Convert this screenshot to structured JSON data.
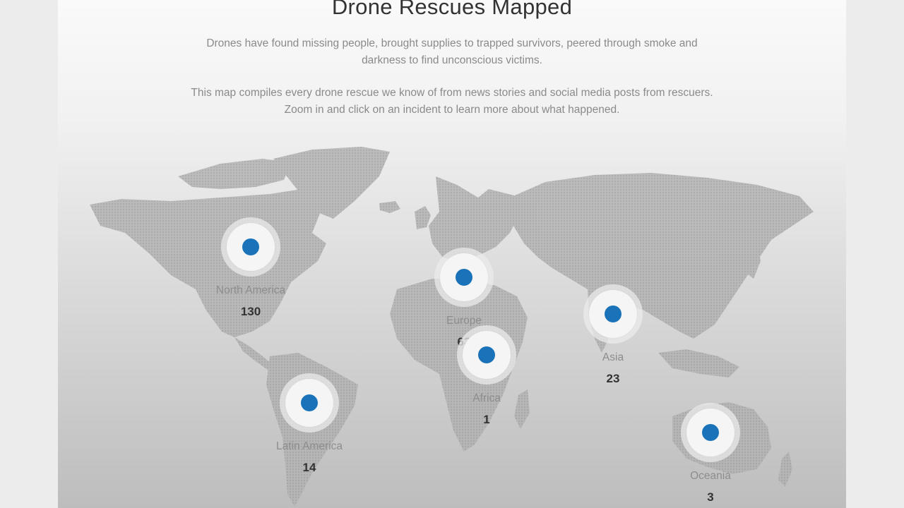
{
  "header": {
    "title": "Drone Rescues Mapped",
    "paragraph_1": "Drones have found missing people, brought supplies to trapped survivors, peered through smoke and darkness to find unconscious victims.",
    "paragraph_2": "This map compiles every drone rescue we know of from news stories and social media posts from rescuers. Zoom in and click on an incident to learn more about what happened."
  },
  "colors": {
    "marker_dot": "#1a73b8",
    "land": "#a9a9a9"
  },
  "regions": [
    {
      "name": "North America",
      "count": "130"
    },
    {
      "name": "Europe",
      "count": "63"
    },
    {
      "name": "Asia",
      "count": "23"
    },
    {
      "name": "Africa",
      "count": "1"
    },
    {
      "name": "Latin America",
      "count": "14"
    },
    {
      "name": "Oceania",
      "count": "3"
    }
  ]
}
